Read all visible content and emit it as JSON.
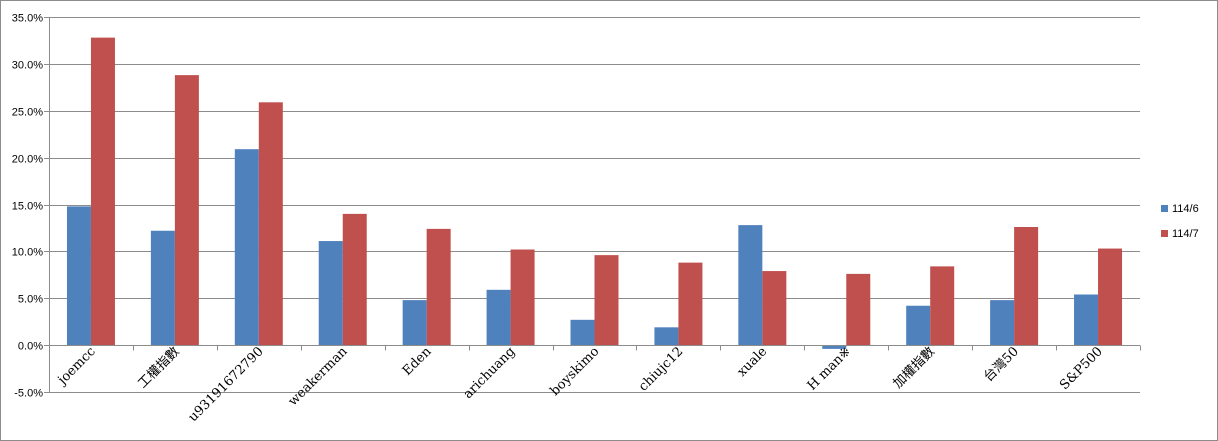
{
  "chart_data": {
    "type": "bar",
    "title": "",
    "xlabel": "",
    "ylabel": "",
    "ylim": [
      -5,
      35
    ],
    "yticks": [
      -5,
      0,
      5,
      10,
      15,
      20,
      25,
      30,
      35
    ],
    "ytick_labels": [
      "-5.0%",
      "0.0%",
      "5.0%",
      "10.0%",
      "15.0%",
      "20.0%",
      "25.0%",
      "30.0%",
      "35.0%"
    ],
    "grid": true,
    "legend_position": "right",
    "categories": [
      "joemcc",
      "工權指數",
      "u93191672790",
      "weakerman",
      "Eden",
      "arichuang",
      "boyskimo",
      "chiujc12",
      "xuale",
      "H man※",
      "加權指數",
      "台灣50",
      "S&P500"
    ],
    "series": [
      {
        "name": "114/6",
        "color": "#4f81bd",
        "values": [
          14.8,
          12.2,
          20.9,
          11.1,
          4.8,
          5.9,
          2.7,
          1.9,
          12.8,
          -0.4,
          4.2,
          4.8,
          5.4
        ]
      },
      {
        "name": "114/7",
        "color": "#c0504d",
        "values": [
          32.8,
          28.8,
          25.9,
          14.0,
          12.4,
          10.2,
          9.6,
          8.8,
          7.9,
          7.6,
          8.4,
          12.6,
          10.3
        ]
      }
    ]
  }
}
